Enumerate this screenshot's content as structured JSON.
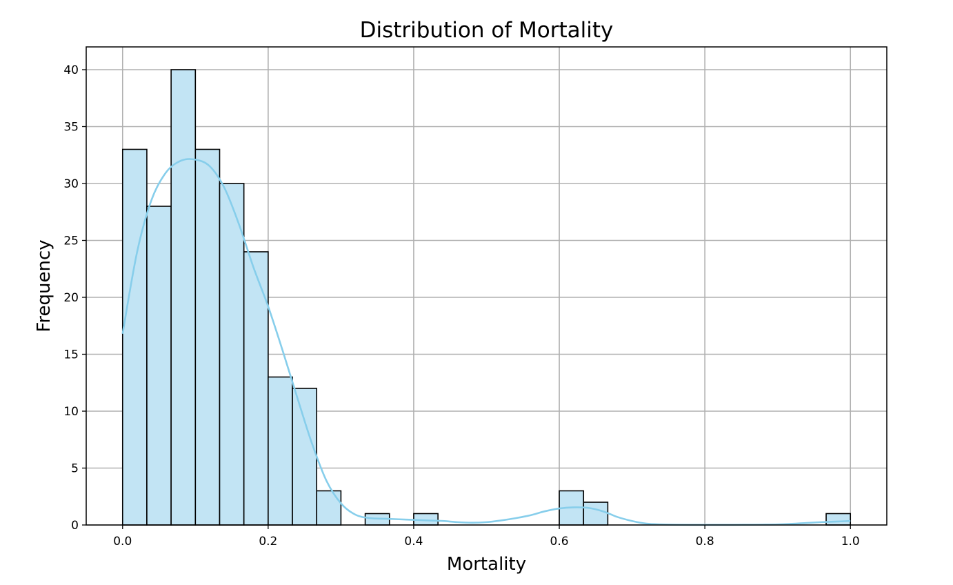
{
  "chart_data": {
    "type": "bar",
    "title": "Distribution of Mortality",
    "xlabel": "Mortality",
    "ylabel": "Frequency",
    "xlim": [
      -0.05,
      1.05
    ],
    "ylim": [
      0,
      42
    ],
    "xticks": [
      0.0,
      0.2,
      0.4,
      0.6,
      0.8,
      1.0
    ],
    "xtick_labels": [
      "0.0",
      "0.2",
      "0.4",
      "0.6",
      "0.8",
      "1.0"
    ],
    "yticks": [
      0,
      5,
      10,
      15,
      20,
      25,
      30,
      35,
      40
    ],
    "ytick_labels": [
      "0",
      "5",
      "10",
      "15",
      "20",
      "25",
      "30",
      "35",
      "40"
    ],
    "bin_width": 0.03333,
    "bins": [
      {
        "start": 0.0,
        "count": 33
      },
      {
        "start": 0.03333,
        "count": 28
      },
      {
        "start": 0.06667,
        "count": 40
      },
      {
        "start": 0.1,
        "count": 33
      },
      {
        "start": 0.13333,
        "count": 30
      },
      {
        "start": 0.16667,
        "count": 24
      },
      {
        "start": 0.2,
        "count": 13
      },
      {
        "start": 0.23333,
        "count": 12
      },
      {
        "start": 0.26667,
        "count": 3
      },
      {
        "start": 0.3,
        "count": 0
      },
      {
        "start": 0.33333,
        "count": 1
      },
      {
        "start": 0.36667,
        "count": 0
      },
      {
        "start": 0.4,
        "count": 1
      },
      {
        "start": 0.43333,
        "count": 0
      },
      {
        "start": 0.46667,
        "count": 0
      },
      {
        "start": 0.5,
        "count": 0
      },
      {
        "start": 0.53333,
        "count": 0
      },
      {
        "start": 0.56667,
        "count": 0
      },
      {
        "start": 0.6,
        "count": 3
      },
      {
        "start": 0.63333,
        "count": 2
      },
      {
        "start": 0.66667,
        "count": 0
      },
      {
        "start": 0.7,
        "count": 0
      },
      {
        "start": 0.73333,
        "count": 0
      },
      {
        "start": 0.76667,
        "count": 0
      },
      {
        "start": 0.8,
        "count": 0
      },
      {
        "start": 0.83333,
        "count": 0
      },
      {
        "start": 0.86667,
        "count": 0
      },
      {
        "start": 0.9,
        "count": 0
      },
      {
        "start": 0.93333,
        "count": 0
      },
      {
        "start": 0.96667,
        "count": 1
      }
    ],
    "kde": {
      "x": [
        0.0,
        0.02,
        0.04,
        0.06,
        0.08,
        0.1,
        0.12,
        0.14,
        0.16,
        0.18,
        0.2,
        0.22,
        0.24,
        0.26,
        0.28,
        0.3,
        0.32,
        0.34,
        0.36,
        0.38,
        0.4,
        0.42,
        0.44,
        0.46,
        0.48,
        0.5,
        0.52,
        0.54,
        0.56,
        0.58,
        0.6,
        0.62,
        0.64,
        0.66,
        0.68,
        0.7,
        0.72,
        0.74,
        0.76,
        0.78,
        0.8,
        0.82,
        0.84,
        0.86,
        0.88,
        0.9,
        0.92,
        0.94,
        0.96,
        0.98,
        1.0
      ],
      "y": [
        16.8,
        24.0,
        28.6,
        31.0,
        32.0,
        32.1,
        31.5,
        29.6,
        26.4,
        22.6,
        19.2,
        15.3,
        11.2,
        7.2,
        3.9,
        1.9,
        0.9,
        0.6,
        0.55,
        0.5,
        0.45,
        0.4,
        0.35,
        0.25,
        0.2,
        0.25,
        0.4,
        0.6,
        0.85,
        1.2,
        1.45,
        1.55,
        1.5,
        1.2,
        0.7,
        0.35,
        0.12,
        0.05,
        0.02,
        0.01,
        0.01,
        0.01,
        0.01,
        0.02,
        0.03,
        0.05,
        0.1,
        0.18,
        0.25,
        0.3,
        0.35
      ]
    },
    "grid": true,
    "legend": "none",
    "colors": {
      "bar_fill": "#c2e4f4",
      "bar_edge": "#000000",
      "kde_line": "#87ceeb",
      "grid": "#b0b0b0"
    }
  }
}
